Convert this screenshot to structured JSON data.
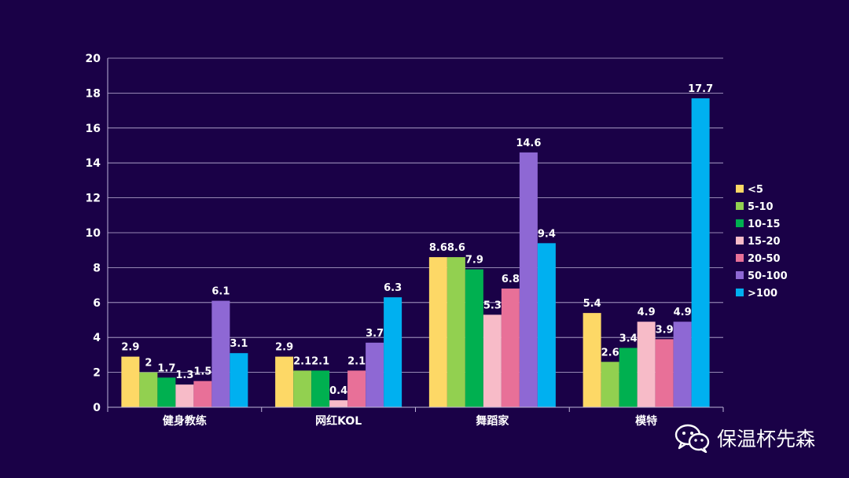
{
  "chart_data": {
    "type": "bar",
    "categories": [
      "健身教练",
      "网红KOL",
      "舞蹈家",
      "模特"
    ],
    "ylim": [
      0,
      20
    ],
    "yticks": [
      0,
      2,
      4,
      6,
      8,
      10,
      12,
      14,
      16,
      18,
      20
    ],
    "grid": true,
    "legend_position": "right",
    "series": [
      {
        "name": "<5",
        "color": "#fdd866",
        "values": [
          2.9,
          2.9,
          8.6,
          5.4
        ]
      },
      {
        "name": "5-10",
        "color": "#92d050",
        "values": [
          2,
          2.1,
          8.6,
          2.6
        ]
      },
      {
        "name": "10-15",
        "color": "#00b050",
        "values": [
          1.7,
          2.1,
          7.9,
          3.4
        ]
      },
      {
        "name": "15-20",
        "color": "#f7bbc8",
        "values": [
          1.3,
          0.4,
          5.3,
          4.9
        ]
      },
      {
        "name": "20-50",
        "color": "#e87098",
        "values": [
          1.5,
          2.1,
          6.8,
          3.9
        ]
      },
      {
        "name": "50-100",
        "color": "#8e68d4",
        "values": [
          6.1,
          3.7,
          14.6,
          4.9
        ]
      },
      {
        "name": ">100",
        "color": "#00b0f0",
        "values": [
          3.1,
          6.3,
          9.4,
          17.7
        ]
      }
    ]
  },
  "watermark": {
    "text": "保温杯先森",
    "icon": "wechat-icon"
  }
}
